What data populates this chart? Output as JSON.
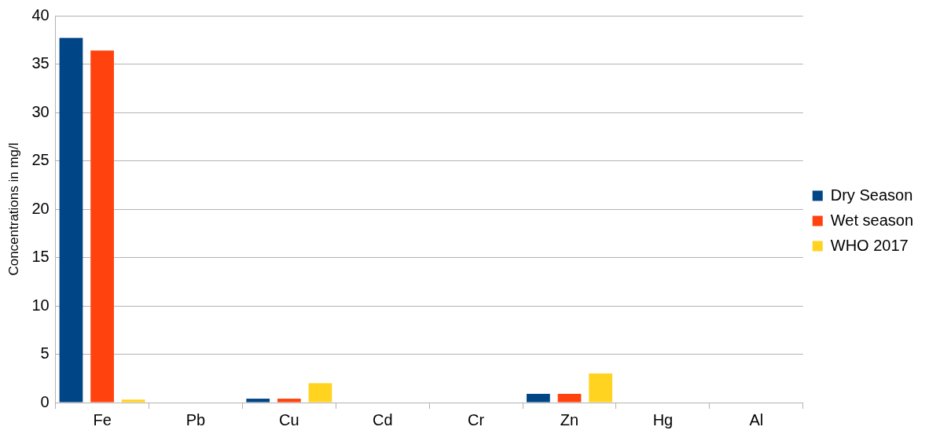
{
  "chart_data": {
    "type": "bar",
    "ylabel": "Concentrations in mg/l",
    "categories": [
      "Fe",
      "Pb",
      "Cu",
      "Cd",
      "Cr",
      "Zn",
      "Hg",
      "Al"
    ],
    "series": [
      {
        "name": "Dry Season",
        "color": "#004586",
        "values": [
          37.7,
          0,
          0.4,
          0,
          0,
          0.9,
          0,
          0
        ]
      },
      {
        "name": "Wet season",
        "color": "#ff420e",
        "values": [
          36.4,
          0,
          0.4,
          0,
          0,
          0.9,
          0,
          0
        ]
      },
      {
        "name": "WHO 2017",
        "color": "#ffd320",
        "values": [
          0.3,
          0,
          2.0,
          0,
          0,
          3.0,
          0,
          0
        ]
      }
    ],
    "ylim": [
      0,
      40
    ],
    "yticks": [
      0,
      5,
      10,
      15,
      20,
      25,
      30,
      35,
      40
    ],
    "grid": "y",
    "legend": "right"
  }
}
